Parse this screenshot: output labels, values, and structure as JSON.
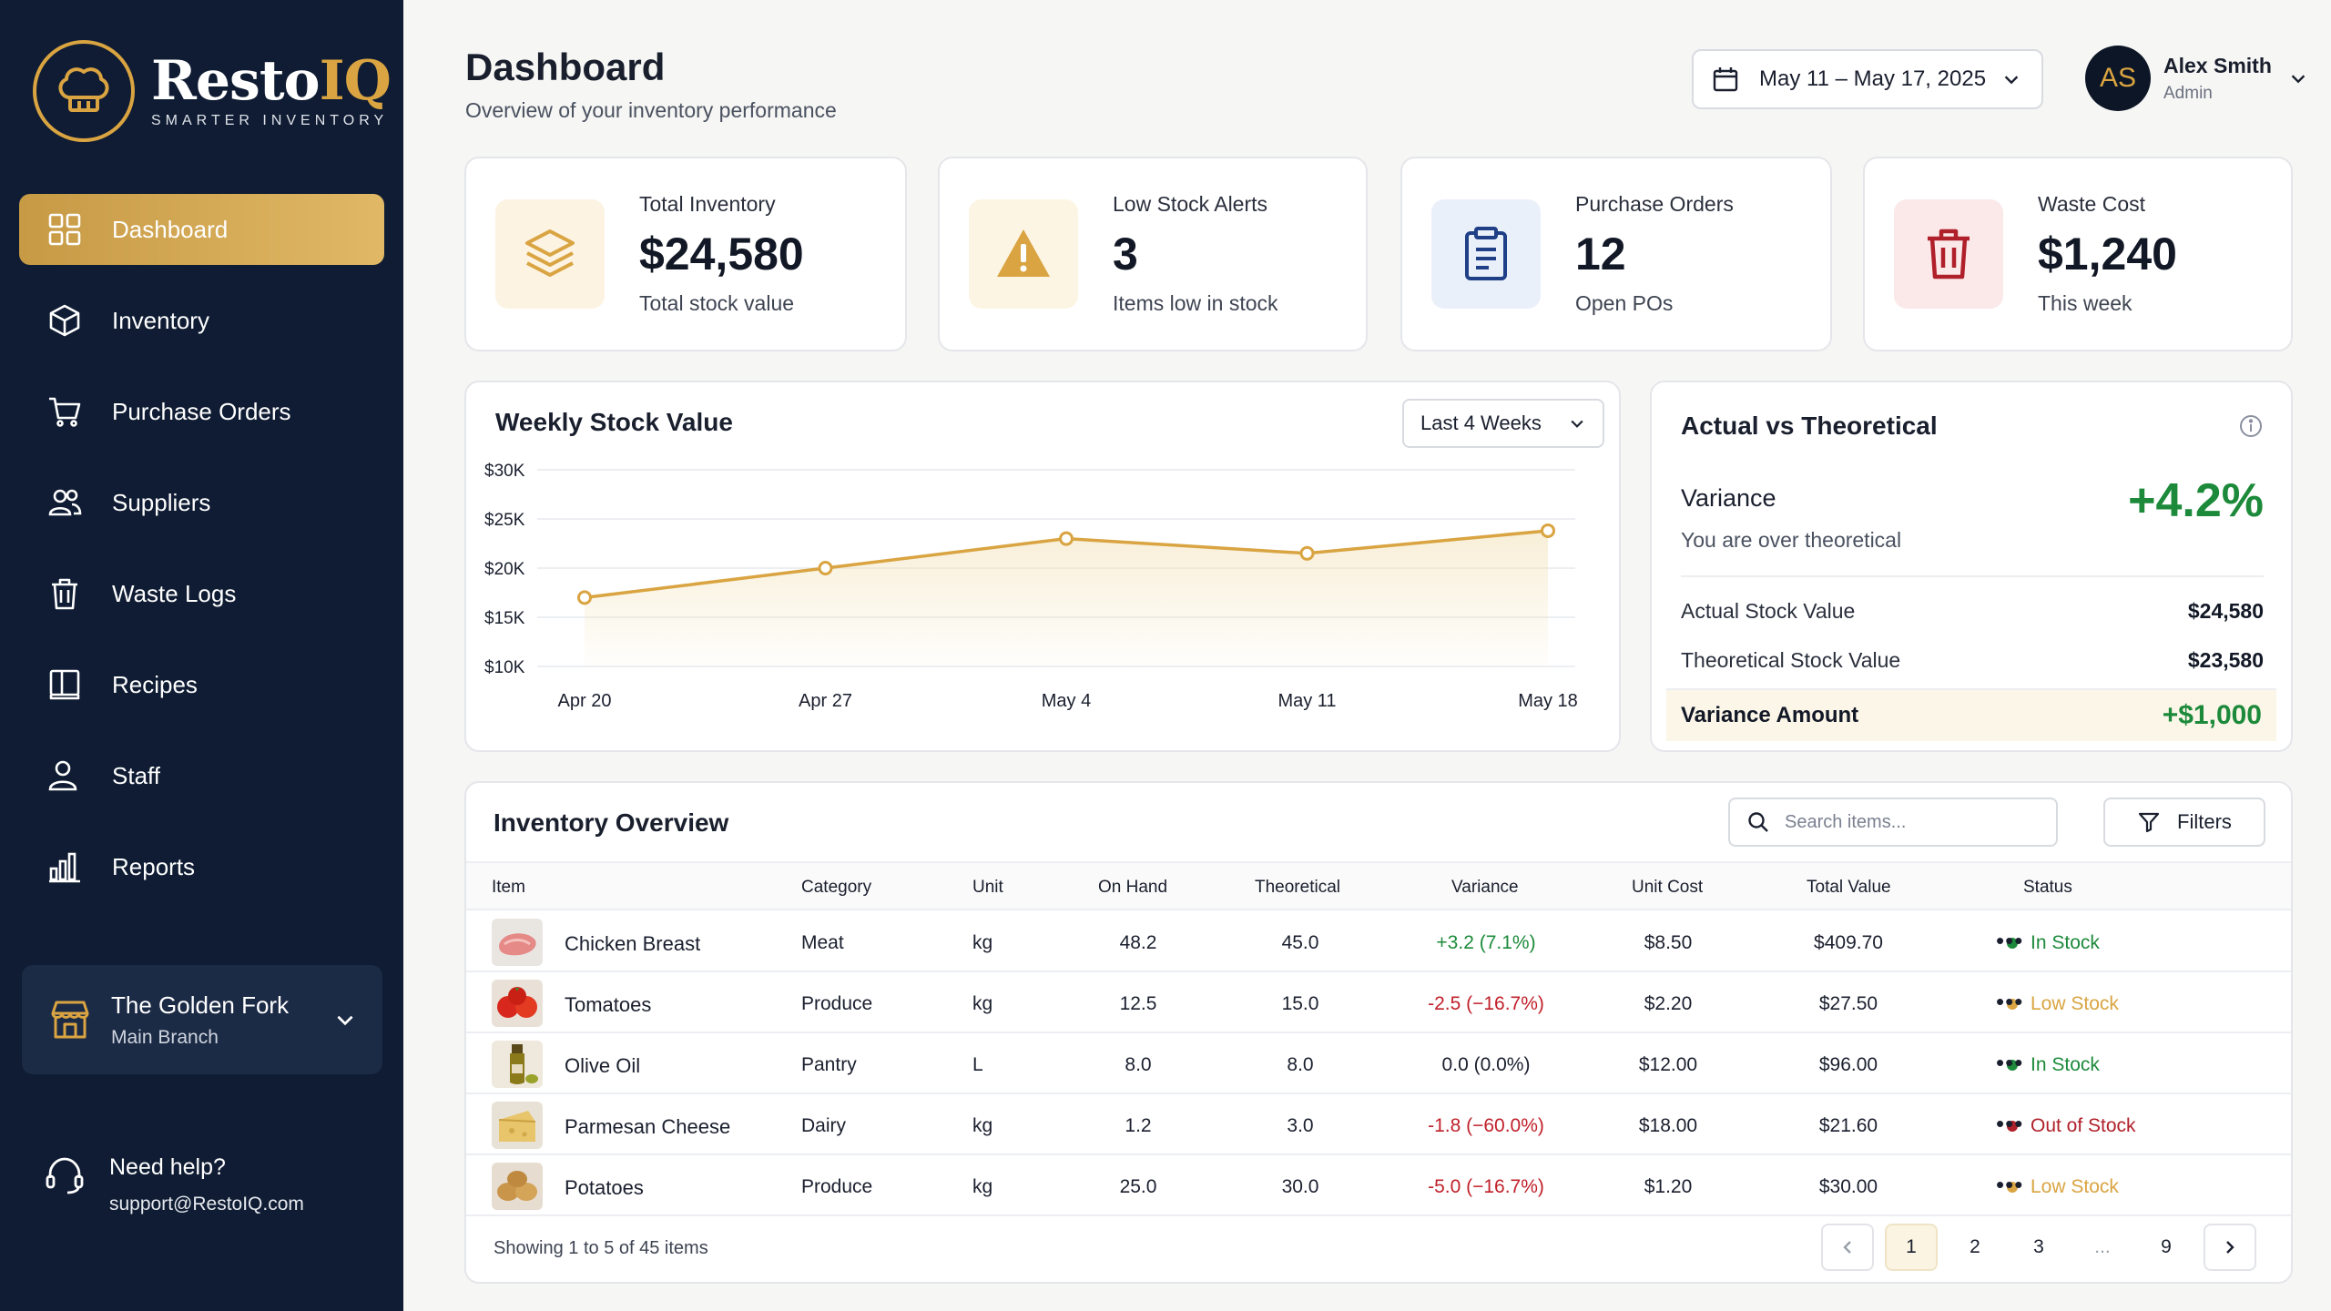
{
  "brand": {
    "name_main": "Resto",
    "name_accent": "IQ",
    "tagline": "SMARTER INVENTORY",
    "accent": "#d9a441",
    "sidebar_bg": "#0f1c33"
  },
  "nav": [
    {
      "label": "Dashboard",
      "icon": "dashboard-icon",
      "active": true
    },
    {
      "label": "Inventory",
      "icon": "cube-icon"
    },
    {
      "label": "Purchase Orders",
      "icon": "cart-icon"
    },
    {
      "label": "Suppliers",
      "icon": "users-icon"
    },
    {
      "label": "Waste Logs",
      "icon": "trash-icon"
    },
    {
      "label": "Recipes",
      "icon": "book-icon"
    },
    {
      "label": "Staff",
      "icon": "user-icon"
    },
    {
      "label": "Reports",
      "icon": "bar-chart-icon"
    }
  ],
  "branch": {
    "name": "The Golden Fork",
    "sub": "Main Branch"
  },
  "help": {
    "title": "Need help?",
    "email": "support@RestoIQ.com"
  },
  "header": {
    "title": "Dashboard",
    "subtitle": "Overview of your inventory performance",
    "date_range": "May 11 – May 17, 2025"
  },
  "user": {
    "initials": "AS",
    "name": "Alex Smith",
    "role": "Admin"
  },
  "stats": [
    {
      "title": "Total Inventory",
      "value": "$24,580",
      "sub": "Total stock value",
      "icon": "layers-icon",
      "bg": "#fcf3e2",
      "color": "#d9a441"
    },
    {
      "title": "Low Stock Alerts",
      "value": "3",
      "sub": "Items low in stock",
      "icon": "warning-icon",
      "bg": "#fdf5e3",
      "color": "#d9a441"
    },
    {
      "title": "Purchase Orders",
      "value": "12",
      "sub": "Open POs",
      "icon": "clipboard-icon",
      "bg": "#eaf0fa",
      "color": "#1f3f86"
    },
    {
      "title": "Waste Cost",
      "value": "$1,240",
      "sub": "This week",
      "icon": "trash-icon",
      "bg": "#fbe9e9",
      "color": "#b0202a"
    }
  ],
  "weekly_chart": {
    "title": "Weekly Stock Value",
    "range_label": "Last 4 Weeks"
  },
  "chart_data": {
    "type": "line",
    "categories": [
      "Apr 20",
      "Apr 27",
      "May 4",
      "May 11",
      "May 18"
    ],
    "series": [
      {
        "values": [
          17000,
          20000,
          23000,
          21500,
          23800
        ],
        "color": "#d9a441"
      }
    ],
    "y_ticks": [
      "$30K",
      "$25K",
      "$20K",
      "$15K",
      "$10K"
    ],
    "ylim": [
      10000,
      30000
    ],
    "grid": true
  },
  "variance": {
    "title": "Actual vs Theoretical",
    "label": "Variance",
    "value": "+4.2%",
    "note": "You are over theoretical",
    "rows": [
      {
        "label": "Actual Stock Value",
        "value": "$24,580"
      },
      {
        "label": "Theoretical Stock Value",
        "value": "$23,580"
      }
    ],
    "total_label": "Variance Amount",
    "total_value": "+$1,000"
  },
  "table": {
    "title": "Inventory Overview",
    "search_placeholder": "Search items...",
    "filters_label": "Filters",
    "columns": [
      "Item",
      "Category",
      "Unit",
      "On Hand",
      "Theoretical",
      "Variance",
      "Unit Cost",
      "Total Value",
      "Status"
    ],
    "rows": [
      {
        "item": "Chicken Breast",
        "category": "Meat",
        "unit": "kg",
        "on_hand": "48.2",
        "theoretical": "45.0",
        "variance": "+3.2 (7.1%)",
        "variance_color": "#1c8a3a",
        "unit_cost": "$8.50",
        "total": "$409.70",
        "status": "In Stock",
        "status_color": "#1c8a3a",
        "thumb": "chicken"
      },
      {
        "item": "Tomatoes",
        "category": "Produce",
        "unit": "kg",
        "on_hand": "12.5",
        "theoretical": "15.0",
        "variance": "-2.5 (−16.7%)",
        "variance_color": "#c0202a",
        "unit_cost": "$2.20",
        "total": "$27.50",
        "status": "Low Stock",
        "status_color": "#d9a441",
        "thumb": "tomato"
      },
      {
        "item": "Olive Oil",
        "category": "Pantry",
        "unit": "L",
        "on_hand": "8.0",
        "theoretical": "8.0",
        "variance": "0.0 (0.0%)",
        "variance_color": "#1a1f2e",
        "unit_cost": "$12.00",
        "total": "$96.00",
        "status": "In Stock",
        "status_color": "#1c8a3a",
        "thumb": "oil"
      },
      {
        "item": "Parmesan Cheese",
        "category": "Dairy",
        "unit": "kg",
        "on_hand": "1.2",
        "theoretical": "3.0",
        "variance": "-1.8 (−60.0%)",
        "variance_color": "#c0202a",
        "unit_cost": "$18.00",
        "total": "$21.60",
        "status": "Out of Stock",
        "status_color": "#b0202a",
        "thumb": "cheese"
      },
      {
        "item": "Potatoes",
        "category": "Produce",
        "unit": "kg",
        "on_hand": "25.0",
        "theoretical": "30.0",
        "variance": "-5.0 (−16.7%)",
        "variance_color": "#c0202a",
        "unit_cost": "$1.20",
        "total": "$30.00",
        "status": "Low Stock",
        "status_color": "#d9a441",
        "thumb": "potato"
      }
    ],
    "showing": "Showing 1 to 5 of 45 items",
    "pages": [
      "1",
      "2",
      "3",
      "...",
      "9"
    ],
    "current_page": "1"
  }
}
